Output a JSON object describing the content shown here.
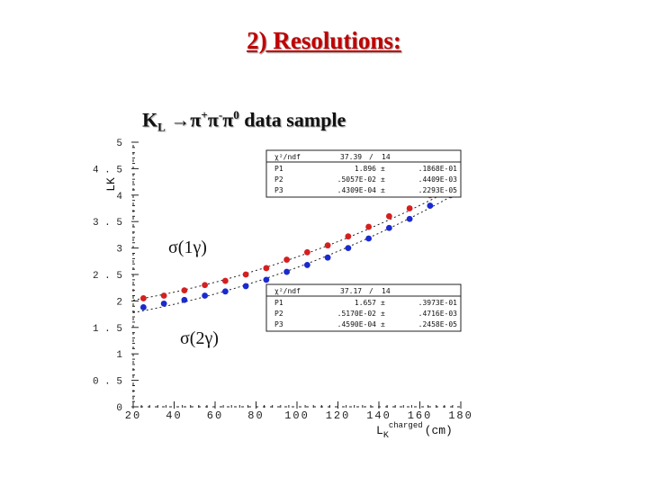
{
  "slide": {
    "title": "2) Resolutions:",
    "subtitle_main": "K",
    "subtitle_sub": "L",
    "subtitle_arrow": "→",
    "subtitle_pi1": "π",
    "subtitle_sup1": "+",
    "subtitle_pi2": "π",
    "subtitle_sup2": "-",
    "subtitle_pi3": "π",
    "subtitle_sup3": "0",
    "subtitle_rest": " data sample"
  },
  "chart_data": {
    "type": "scatter",
    "ylabel": "LK",
    "xlabel_main": "L",
    "xlabel_sub": "K",
    "xlabel_sup": "charged",
    "xlabel_unit": "(cm)",
    "xlim": [
      20,
      180
    ],
    "ylim": [
      0,
      5
    ],
    "x_ticks": [
      "20",
      "40",
      "60",
      "80",
      "100",
      "120",
      "140",
      "160",
      "180"
    ],
    "y_ticks": [
      "0",
      "0.5",
      "1",
      "1.5",
      "2",
      "2.5",
      "3",
      "3.5",
      "4",
      "4.5",
      "5"
    ],
    "grid": false,
    "series": [
      {
        "name": "σ(1γ)",
        "color": "#d42020",
        "x": [
          25,
          35,
          45,
          55,
          65,
          75,
          85,
          95,
          105,
          115,
          125,
          135,
          145,
          155,
          165,
          175
        ],
        "y": [
          2.05,
          2.1,
          2.2,
          2.3,
          2.38,
          2.5,
          2.62,
          2.78,
          2.92,
          3.05,
          3.22,
          3.4,
          3.6,
          3.75,
          4.0,
          4.22
        ],
        "fit": {
          "p1": 1.896,
          "p2": 0.005057,
          "p3": 4.3e-05
        },
        "stats": {
          "chi2_label": "χ²/ndf",
          "chi2_value": "37.39",
          "ndf_sep": "/",
          "ndf_value": "14",
          "rows": [
            {
              "name": "P1",
              "value": "1.896",
              "pm": "±",
              "err": ".1868E-01"
            },
            {
              "name": "P2",
              "value": ".5057E-02",
              "pm": "±",
              "err": ".4409E-03"
            },
            {
              "name": "P3",
              "value": ".4309E-04",
              "pm": "±",
              "err": ".2293E-05"
            }
          ]
        }
      },
      {
        "name": "σ(2γ)",
        "color": "#1a2ad0",
        "x": [
          25,
          35,
          45,
          55,
          65,
          75,
          85,
          95,
          105,
          115,
          125,
          135,
          145,
          155,
          165,
          175
        ],
        "y": [
          1.88,
          1.95,
          2.02,
          2.1,
          2.18,
          2.28,
          2.4,
          2.55,
          2.68,
          2.82,
          3.0,
          3.18,
          3.38,
          3.55,
          3.8,
          4.0
        ],
        "fit": {
          "p1": 1.657,
          "p2": 0.00517,
          "p3": 4.59e-05
        },
        "stats": {
          "chi2_label": "χ²/ndf",
          "chi2_value": "37.17",
          "ndf_sep": "/",
          "ndf_value": "14",
          "rows": [
            {
              "name": "P1",
              "value": "1.657",
              "pm": "±",
              "err": ".3973E-01"
            },
            {
              "name": "P2",
              "value": ".5170E-02",
              "pm": "±",
              "err": ".4716E-03"
            },
            {
              "name": "P3",
              "value": ".4590E-04",
              "pm": "±",
              "err": ".2458E-05"
            }
          ]
        }
      }
    ]
  }
}
